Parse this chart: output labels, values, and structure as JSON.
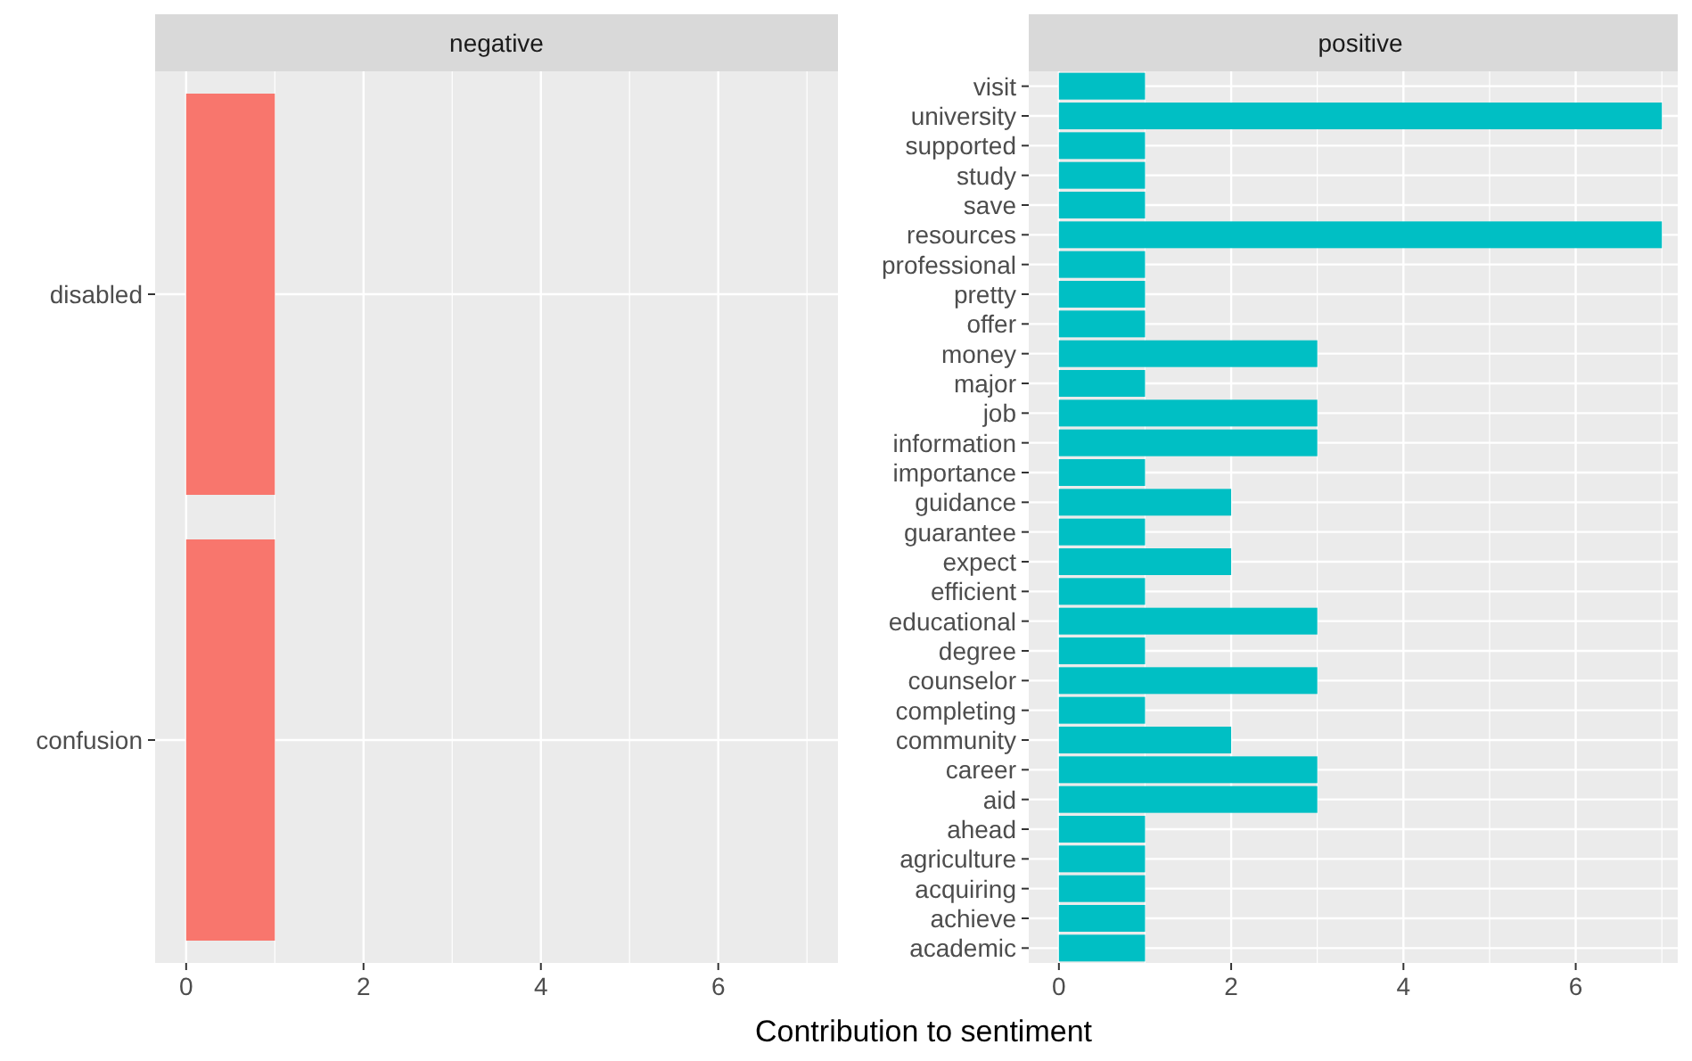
{
  "chart_data": [
    {
      "type": "bar",
      "orientation": "horizontal",
      "title": "negative",
      "xlabel": "Contribution to sentiment",
      "categories": [
        "disabled",
        "confusion"
      ],
      "values": [
        1,
        1
      ],
      "color": "#f8766d",
      "xlim": [
        -0.35,
        7.35
      ],
      "xticks": [
        0,
        2,
        4,
        6
      ],
      "grid": true
    },
    {
      "type": "bar",
      "orientation": "horizontal",
      "title": "positive",
      "categories": [
        "visit",
        "university",
        "supported",
        "study",
        "save",
        "resources",
        "professional",
        "pretty",
        "offer",
        "money",
        "major",
        "job",
        "information",
        "importance",
        "guidance",
        "guarantee",
        "expect",
        "efficient",
        "educational",
        "degree",
        "counselor",
        "completing",
        "community",
        "career",
        "aid",
        "ahead",
        "agriculture",
        "acquiring",
        "achieve",
        "academic"
      ],
      "values": [
        1,
        7,
        1,
        1,
        1,
        7,
        1,
        1,
        1,
        3,
        1,
        3,
        3,
        1,
        2,
        1,
        2,
        1,
        3,
        1,
        3,
        1,
        2,
        3,
        3,
        1,
        1,
        1,
        1,
        1
      ],
      "color": "#00bfc4",
      "xlim": [
        -0.35,
        7.35
      ],
      "xticks": [
        0,
        2,
        4,
        6
      ],
      "grid": true
    }
  ]
}
